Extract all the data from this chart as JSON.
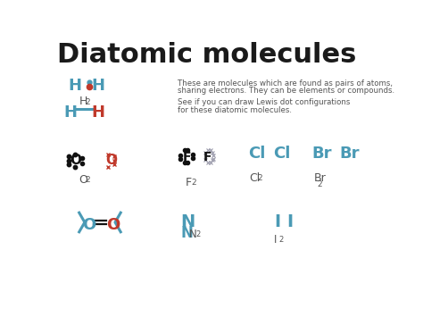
{
  "title": "Diatomic molecules",
  "title_color": "#1a1a1a",
  "title_fontsize": 22,
  "title_fontweight": "bold",
  "bg_color": "#ffffff",
  "blue": "#4a9ab5",
  "red": "#c0392b",
  "black": "#111111",
  "gray": "#777777",
  "dark_gray": "#555555",
  "cross_gray": "#9999aa",
  "desc1": "These are molecules which are found as pairs of atoms,",
  "desc2": "sharing electrons. They can be elements or compounds.",
  "desc3": "See if you can draw Lewis dot configurations",
  "desc4": "for these diatomic molecules."
}
